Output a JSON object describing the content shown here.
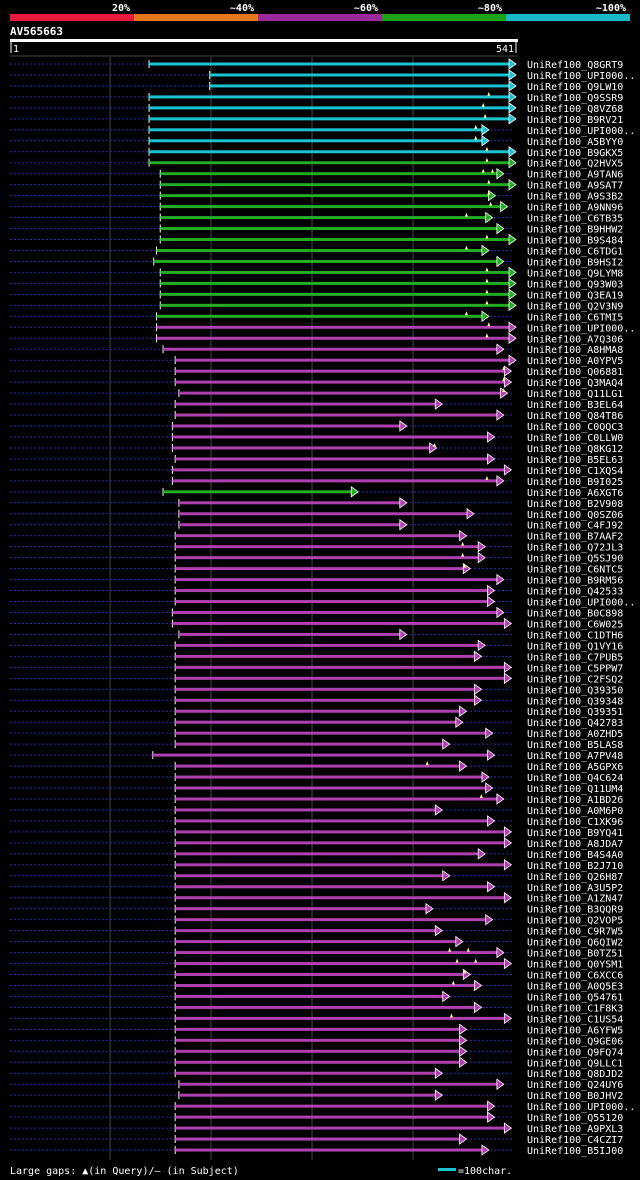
{
  "chart_data": {
    "type": "alignment_overview",
    "title": "AV565663",
    "query_start": "1",
    "query_end": "541",
    "query_length": 541,
    "identity_legend": [
      {
        "label": "20%",
        "color": "#e8193c"
      },
      {
        "label": "~40%",
        "color": "#e87719"
      },
      {
        "label": "~60%",
        "color": "#9c2a9c"
      },
      {
        "label": "~80%",
        "color": "#19a319"
      },
      {
        "label": "~100%",
        "color": "#19b8c8"
      }
    ],
    "footer": {
      "gap_note": "Large gaps: ▲(in Query)/– (in Subject)",
      "scale_note": "=100char."
    },
    "hits": [
      {
        "name": "UniRef100_Q8GRT9",
        "start": 150,
        "end": 541,
        "color": "cyan",
        "gaps": []
      },
      {
        "name": "UniRef100_UPI000..",
        "start": 215,
        "end": 541,
        "color": "cyan",
        "gaps": []
      },
      {
        "name": "UniRef100_Q9LW10",
        "start": 215,
        "end": 541,
        "color": "cyan",
        "gaps": []
      },
      {
        "name": "UniRef100_Q9SSR9",
        "start": 150,
        "end": 541,
        "color": "cyan",
        "gaps": [
          514
        ]
      },
      {
        "name": "UniRef100_Q8VZ68",
        "start": 150,
        "end": 541,
        "color": "cyan",
        "gaps": [
          508
        ]
      },
      {
        "name": "UniRef100_B9RV21",
        "start": 150,
        "end": 541,
        "color": "cyan",
        "gaps": [
          510
        ]
      },
      {
        "name": "UniRef100_UPI000..",
        "start": 150,
        "end": 512,
        "color": "cyan",
        "gaps": [
          500
        ]
      },
      {
        "name": "UniRef100_A5BYY0",
        "start": 150,
        "end": 512,
        "color": "cyan",
        "gaps": [
          500
        ]
      },
      {
        "name": "UniRef100_B9GKX5",
        "start": 150,
        "end": 541,
        "color": "cyan",
        "gaps": [
          512
        ]
      },
      {
        "name": "UniRef100_Q2HVX5",
        "start": 150,
        "end": 541,
        "color": "green",
        "gaps": [
          512
        ]
      },
      {
        "name": "UniRef100_A9TAN6",
        "start": 162,
        "end": 528,
        "color": "green",
        "gaps": [
          508,
          518
        ]
      },
      {
        "name": "UniRef100_A9SAT7",
        "start": 162,
        "end": 541,
        "color": "green",
        "gaps": [
          514
        ]
      },
      {
        "name": "UniRef100_A9S3B2",
        "start": 162,
        "end": 519,
        "color": "green",
        "gaps": [
          514
        ]
      },
      {
        "name": "UniRef100_A9NN96",
        "start": 162,
        "end": 532,
        "color": "green",
        "gaps": [
          516
        ]
      },
      {
        "name": "UniRef100_C6TB35",
        "start": 162,
        "end": 516,
        "color": "green",
        "gaps": [
          490
        ]
      },
      {
        "name": "UniRef100_B9HHW2",
        "start": 162,
        "end": 528,
        "color": "green",
        "gaps": []
      },
      {
        "name": "UniRef100_B9S484",
        "start": 162,
        "end": 541,
        "color": "green",
        "gaps": [
          512
        ]
      },
      {
        "name": "UniRef100_C6TDG1",
        "start": 158,
        "end": 512,
        "color": "green",
        "gaps": [
          490
        ]
      },
      {
        "name": "UniRef100_B9HSI2",
        "start": 155,
        "end": 528,
        "color": "green",
        "gaps": []
      },
      {
        "name": "UniRef100_Q9LYM8",
        "start": 162,
        "end": 541,
        "color": "green",
        "gaps": [
          512
        ]
      },
      {
        "name": "UniRef100_Q93W03",
        "start": 162,
        "end": 541,
        "color": "green",
        "gaps": [
          512
        ]
      },
      {
        "name": "UniRef100_Q3EA19",
        "start": 162,
        "end": 541,
        "color": "green",
        "gaps": [
          512
        ]
      },
      {
        "name": "UniRef100_Q2V3N9",
        "start": 162,
        "end": 541,
        "color": "green",
        "gaps": [
          512
        ]
      },
      {
        "name": "UniRef100_C6TMI5",
        "start": 158,
        "end": 512,
        "color": "green",
        "gaps": [
          490
        ]
      },
      {
        "name": "UniRef100_UPI000..",
        "start": 158,
        "end": 541,
        "color": "purple",
        "gaps": [
          514
        ]
      },
      {
        "name": "UniRef100_A7Q306",
        "start": 158,
        "end": 541,
        "color": "purple",
        "gaps": [
          512
        ]
      },
      {
        "name": "UniRef100_A8HMA8",
        "start": 165,
        "end": 528,
        "color": "purple",
        "gaps": []
      },
      {
        "name": "UniRef100_A0YPV5",
        "start": 178,
        "end": 541,
        "color": "purple",
        "gaps": []
      },
      {
        "name": "UniRef100_Q06881",
        "start": 178,
        "end": 536,
        "color": "purple",
        "gaps": [
          530
        ]
      },
      {
        "name": "UniRef100_Q3MAQ4",
        "start": 178,
        "end": 536,
        "color": "purple",
        "gaps": [
          530
        ]
      },
      {
        "name": "UniRef100_Q11LG1",
        "start": 182,
        "end": 532,
        "color": "purple",
        "gaps": [
          530
        ]
      },
      {
        "name": "UniRef100_B3EL64",
        "start": 178,
        "end": 462,
        "color": "purple",
        "gaps": []
      },
      {
        "name": "UniRef100_Q84T86",
        "start": 178,
        "end": 528,
        "color": "purple",
        "gaps": []
      },
      {
        "name": "UniRef100_C0QQC3",
        "start": 175,
        "end": 424,
        "color": "purple",
        "gaps": []
      },
      {
        "name": "UniRef100_C0LLW0",
        "start": 175,
        "end": 518,
        "color": "purple",
        "gaps": []
      },
      {
        "name": "UniRef100_Q8KG12",
        "start": 175,
        "end": 456,
        "color": "purple",
        "gaps": [
          456
        ]
      },
      {
        "name": "UniRef100_B5EL63",
        "start": 178,
        "end": 518,
        "color": "purple",
        "gaps": []
      },
      {
        "name": "UniRef100_C1XQS4",
        "start": 175,
        "end": 536,
        "color": "purple",
        "gaps": []
      },
      {
        "name": "UniRef100_B9I025",
        "start": 175,
        "end": 528,
        "color": "purple",
        "gaps": [
          512
        ]
      },
      {
        "name": "UniRef100_A6XGT6",
        "start": 165,
        "end": 372,
        "color": "green",
        "gaps": []
      },
      {
        "name": "UniRef100_B2V908",
        "start": 182,
        "end": 424,
        "color": "purple",
        "gaps": []
      },
      {
        "name": "UniRef100_Q0SZ06",
        "start": 182,
        "end": 496,
        "color": "purple",
        "gaps": []
      },
      {
        "name": "UniRef100_C4FJ92",
        "start": 182,
        "end": 424,
        "color": "purple",
        "gaps": []
      },
      {
        "name": "UniRef100_B7AAF2",
        "start": 178,
        "end": 488,
        "color": "purple",
        "gaps": []
      },
      {
        "name": "UniRef100_Q72JL3",
        "start": 178,
        "end": 508,
        "color": "purple",
        "gaps": [
          486
        ]
      },
      {
        "name": "UniRef100_Q5SJ90",
        "start": 178,
        "end": 508,
        "color": "purple",
        "gaps": [
          486
        ]
      },
      {
        "name": "UniRef100_C6NTC5",
        "start": 178,
        "end": 492,
        "color": "purple",
        "gaps": [
          488
        ]
      },
      {
        "name": "UniRef100_B9RM56",
        "start": 178,
        "end": 528,
        "color": "purple",
        "gaps": []
      },
      {
        "name": "UniRef100_Q42533",
        "start": 178,
        "end": 518,
        "color": "purple",
        "gaps": []
      },
      {
        "name": "UniRef100_UPI000..",
        "start": 178,
        "end": 518,
        "color": "purple",
        "gaps": []
      },
      {
        "name": "UniRef100_B0C898",
        "start": 175,
        "end": 528,
        "color": "purple",
        "gaps": []
      },
      {
        "name": "UniRef100_C6W025",
        "start": 175,
        "end": 536,
        "color": "purple",
        "gaps": []
      },
      {
        "name": "UniRef100_C1DTH6",
        "start": 182,
        "end": 424,
        "color": "purple",
        "gaps": []
      },
      {
        "name": "UniRef100_Q1VY16",
        "start": 178,
        "end": 508,
        "color": "purple",
        "gaps": []
      },
      {
        "name": "UniRef100_C7PUB5",
        "start": 178,
        "end": 504,
        "color": "purple",
        "gaps": []
      },
      {
        "name": "UniRef100_C5PPW7",
        "start": 178,
        "end": 536,
        "color": "purple",
        "gaps": []
      },
      {
        "name": "UniRef100_C2FSQ2",
        "start": 178,
        "end": 536,
        "color": "purple",
        "gaps": []
      },
      {
        "name": "UniRef100_Q39350",
        "start": 178,
        "end": 504,
        "color": "purple",
        "gaps": []
      },
      {
        "name": "UniRef100_Q39348",
        "start": 178,
        "end": 504,
        "color": "purple",
        "gaps": []
      },
      {
        "name": "UniRef100_Q39351",
        "start": 178,
        "end": 488,
        "color": "purple",
        "gaps": []
      },
      {
        "name": "UniRef100_Q42783",
        "start": 178,
        "end": 484,
        "color": "purple",
        "gaps": []
      },
      {
        "name": "UniRef100_A0ZHD5",
        "start": 178,
        "end": 516,
        "color": "purple",
        "gaps": []
      },
      {
        "name": "UniRef100_B5LAS8",
        "start": 178,
        "end": 470,
        "color": "purple",
        "gaps": []
      },
      {
        "name": "UniRef100_A7PV48",
        "start": 154,
        "end": 518,
        "color": "purple",
        "gaps": []
      },
      {
        "name": "UniRef100_A5GPX6",
        "start": 178,
        "end": 488,
        "color": "purple",
        "gaps": [
          448
        ]
      },
      {
        "name": "UniRef100_Q4C624",
        "start": 178,
        "end": 512,
        "color": "purple",
        "gaps": []
      },
      {
        "name": "UniRef100_Q11UM4",
        "start": 178,
        "end": 516,
        "color": "purple",
        "gaps": []
      },
      {
        "name": "UniRef100_A1BD26",
        "start": 178,
        "end": 528,
        "color": "purple",
        "gaps": [
          506
        ]
      },
      {
        "name": "UniRef100_A0M6P0",
        "start": 178,
        "end": 462,
        "color": "purple",
        "gaps": []
      },
      {
        "name": "UniRef100_C1XK96",
        "start": 178,
        "end": 518,
        "color": "purple",
        "gaps": []
      },
      {
        "name": "UniRef100_B9YQ41",
        "start": 178,
        "end": 536,
        "color": "purple",
        "gaps": []
      },
      {
        "name": "UniRef100_A8JDA7",
        "start": 178,
        "end": 536,
        "color": "purple",
        "gaps": []
      },
      {
        "name": "UniRef100_B4S4A0",
        "start": 178,
        "end": 508,
        "color": "purple",
        "gaps": []
      },
      {
        "name": "UniRef100_B2J710",
        "start": 178,
        "end": 536,
        "color": "purple",
        "gaps": []
      },
      {
        "name": "UniRef100_Q26H87",
        "start": 178,
        "end": 470,
        "color": "purple",
        "gaps": []
      },
      {
        "name": "UniRef100_A3U5P2",
        "start": 178,
        "end": 518,
        "color": "purple",
        "gaps": []
      },
      {
        "name": "UniRef100_A1ZN47",
        "start": 178,
        "end": 536,
        "color": "purple",
        "gaps": []
      },
      {
        "name": "UniRef100_B3QQR9",
        "start": 178,
        "end": 452,
        "color": "purple",
        "gaps": []
      },
      {
        "name": "UniRef100_Q2VOP5",
        "start": 178,
        "end": 516,
        "color": "purple",
        "gaps": []
      },
      {
        "name": "UniRef100_C9R7W5",
        "start": 178,
        "end": 462,
        "color": "purple",
        "gaps": []
      },
      {
        "name": "UniRef100_Q6QIW2",
        "start": 178,
        "end": 484,
        "color": "purple",
        "gaps": []
      },
      {
        "name": "UniRef100_B0TZ51",
        "start": 178,
        "end": 528,
        "color": "purple",
        "gaps": [
          472,
          492
        ]
      },
      {
        "name": "UniRef100_Q0YSM1",
        "start": 178,
        "end": 536,
        "color": "purple",
        "gaps": [
          480,
          500
        ]
      },
      {
        "name": "UniRef100_C6XCC6",
        "start": 178,
        "end": 492,
        "color": "purple",
        "gaps": [
          488
        ]
      },
      {
        "name": "UniRef100_A0Q5E3",
        "start": 178,
        "end": 504,
        "color": "purple",
        "gaps": [
          476
        ]
      },
      {
        "name": "UniRef100_Q54761",
        "start": 178,
        "end": 470,
        "color": "purple",
        "gaps": []
      },
      {
        "name": "UniRef100_C1F8K3",
        "start": 178,
        "end": 504,
        "color": "purple",
        "gaps": []
      },
      {
        "name": "UniRef100_C1US54",
        "start": 178,
        "end": 536,
        "color": "purple",
        "gaps": [
          474
        ]
      },
      {
        "name": "UniRef100_A6YFW5",
        "start": 178,
        "end": 488,
        "color": "purple",
        "gaps": []
      },
      {
        "name": "UniRef100_Q9GE06",
        "start": 178,
        "end": 488,
        "color": "purple",
        "gaps": []
      },
      {
        "name": "UniRef100_Q9FQ74",
        "start": 178,
        "end": 488,
        "color": "purple",
        "gaps": []
      },
      {
        "name": "UniRef100_Q9LLC1",
        "start": 178,
        "end": 488,
        "color": "purple",
        "gaps": []
      },
      {
        "name": "UniRef100_Q8DJD2",
        "start": 178,
        "end": 462,
        "color": "purple",
        "gaps": []
      },
      {
        "name": "UniRef100_Q24UY6",
        "start": 182,
        "end": 528,
        "color": "purple",
        "gaps": []
      },
      {
        "name": "UniRef100_B0JHV2",
        "start": 182,
        "end": 462,
        "color": "purple",
        "gaps": []
      },
      {
        "name": "UniRef100_UPI000..",
        "start": 178,
        "end": 518,
        "color": "purple",
        "gaps": []
      },
      {
        "name": "UniRef100_Q55120",
        "start": 178,
        "end": 518,
        "color": "purple",
        "gaps": []
      },
      {
        "name": "UniRef100_A9PXL3",
        "start": 178,
        "end": 536,
        "color": "purple",
        "gaps": []
      },
      {
        "name": "UniRef100_C4CZI7",
        "start": 178,
        "end": 488,
        "color": "purple",
        "gaps": []
      },
      {
        "name": "UniRef100_B5IJ00",
        "start": 178,
        "end": 512,
        "color": "purple",
        "gaps": []
      }
    ]
  }
}
